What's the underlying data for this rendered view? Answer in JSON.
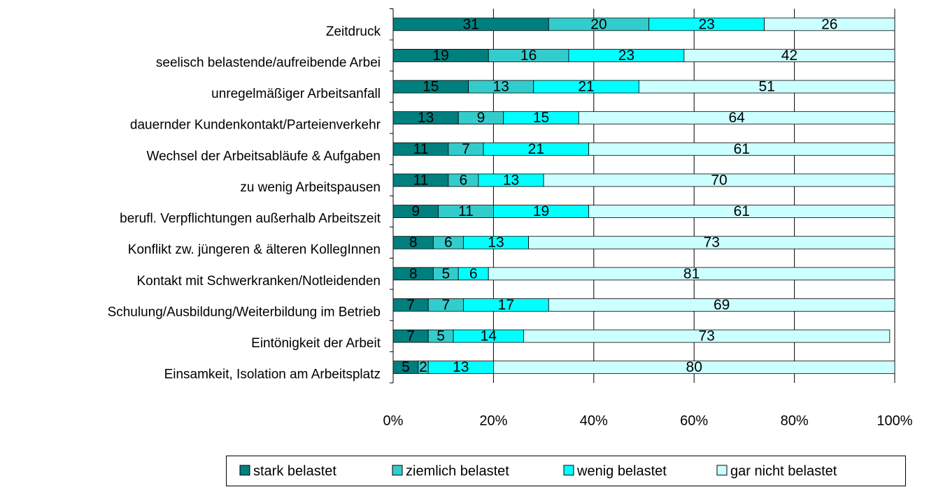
{
  "chart_data": {
    "type": "stacked_barh",
    "categories": [
      "Zeitdruck",
      "seelisch belastende/aufreibende Arbei",
      "unregelmäßiger Arbeitsanfall",
      "dauernder Kundenkontakt/Parteienverkehr",
      "Wechsel der Arbeitsabläufe & Aufgaben",
      "zu wenig Arbeitspausen",
      "berufl. Verpflichtungen außerhalb Arbeitszeit",
      "Konflikt zw. jüngeren & älteren KollegInnen",
      "Kontakt mit Schwerkranken/Notleidenden",
      "Schulung/Ausbildung/Weiterbildung im Betrieb",
      "Eintönigkeit der Arbeit",
      "Einsamkeit, Isolation am Arbeitsplatz"
    ],
    "series": [
      {
        "name": "stark belastet",
        "color": "#007f7f",
        "values": [
          31,
          19,
          15,
          13,
          11,
          11,
          9,
          8,
          8,
          7,
          7,
          5
        ]
      },
      {
        "name": "ziemlich belastet",
        "color": "#33cccc",
        "values": [
          20,
          16,
          13,
          9,
          7,
          6,
          11,
          6,
          5,
          7,
          5,
          2
        ]
      },
      {
        "name": "wenig belastet",
        "color": "#00ffff",
        "values": [
          23,
          23,
          21,
          15,
          21,
          13,
          19,
          13,
          6,
          17,
          14,
          13
        ]
      },
      {
        "name": "gar nicht belastet",
        "color": "#ccffff",
        "values": [
          26,
          42,
          51,
          64,
          61,
          70,
          61,
          73,
          81,
          69,
          73,
          80
        ]
      }
    ],
    "xlim": [
      0,
      100
    ],
    "xticks": [
      {
        "value": 0,
        "label": "0%"
      },
      {
        "value": 20,
        "label": "20%"
      },
      {
        "value": 40,
        "label": "40%"
      },
      {
        "value": 60,
        "label": "60%"
      },
      {
        "value": 80,
        "label": "80%"
      },
      {
        "value": 100,
        "label": "100%"
      }
    ],
    "grid": true,
    "legend": "bottom"
  }
}
